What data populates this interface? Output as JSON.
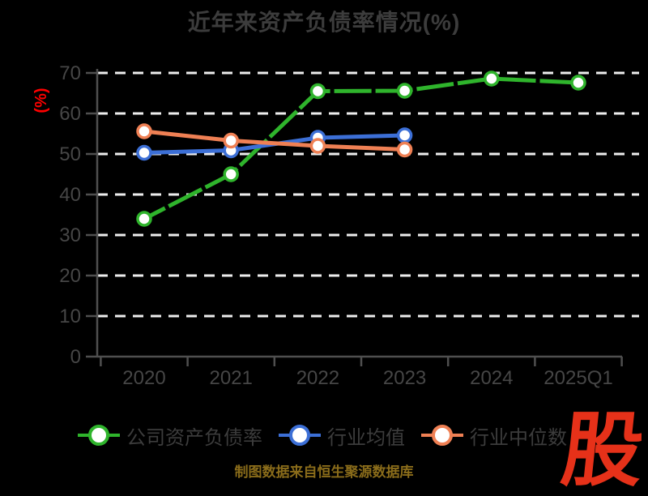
{
  "colors": {
    "background": "#000000",
    "title_text": "#3c3c3c",
    "tick_label": "#464646",
    "grid": "#ededed",
    "spine": "#4f4f4f",
    "axis_unit": "#ff0000",
    "footer": "#8a6c1a",
    "watermark": "#e63119",
    "legend_text": "#3c3c3c"
  },
  "footer": {
    "text": "制图数据来自恒生聚源数据库"
  },
  "watermark": {
    "text": "股"
  },
  "chart_data": {
    "type": "line",
    "title": "近年来资产负债率情况(%)",
    "xlabel": "",
    "ylabel": "(%)",
    "categories": [
      "2020",
      "2021",
      "2022",
      "2023",
      "2024",
      "2025Q1"
    ],
    "series": [
      {
        "name": "公司资产负债率",
        "color": "#2fb42c",
        "line_style": "solid_with_dash_overlay",
        "values": [
          34.0,
          45.0,
          65.5,
          65.6,
          68.6,
          67.6
        ]
      },
      {
        "name": "行业均值",
        "color": "#3c6fd6",
        "line_style": "solid",
        "values": [
          50.3,
          50.9,
          54.0,
          54.6,
          null,
          null
        ]
      },
      {
        "name": "行业中位数",
        "color": "#ef8054",
        "line_style": "solid",
        "values": [
          55.6,
          53.3,
          52.0,
          51.1,
          null,
          null
        ]
      }
    ],
    "ylim": [
      0,
      70
    ],
    "yticks": [
      0,
      10,
      20,
      30,
      40,
      50,
      60,
      70
    ],
    "grid": "horizontal-dashed-white",
    "legend_position": "bottom",
    "marker": "white-filled-circle"
  }
}
